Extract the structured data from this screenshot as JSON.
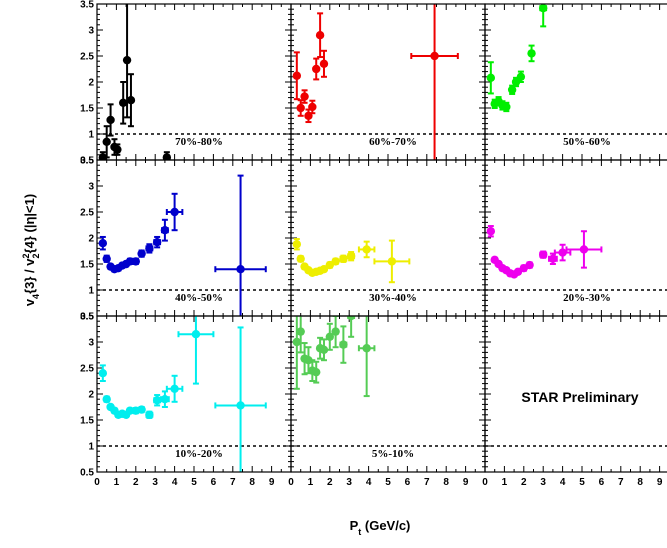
{
  "chart_data": {
    "type": "scatter",
    "xlabel": "P_t (GeV/c)",
    "ylabel": "v_4{3} / v_2^2{4} (|η|<1)",
    "xlim": [
      0,
      10
    ],
    "ylim": [
      0.5,
      3.5
    ],
    "x_ticks": [
      "0",
      "1",
      "2",
      "3",
      "4",
      "5",
      "6",
      "7",
      "8",
      "9"
    ],
    "y_ticks": [
      "0.5",
      "1",
      "1.5",
      "2",
      "2.5",
      "3",
      "3.5"
    ],
    "reference_line": 1,
    "annotation": "STAR Preliminary",
    "panels": [
      {
        "label": "70%-80%",
        "color": "#000000",
        "points": [
          {
            "x": 0.3,
            "y": 0.55,
            "ey": 0.1,
            "ex": 0
          },
          {
            "x": 0.5,
            "y": 0.85,
            "ey": 0.3,
            "ex": 0
          },
          {
            "x": 0.7,
            "y": 1.27,
            "ey": 0.3,
            "ex": 0
          },
          {
            "x": 0.9,
            "y": 0.75,
            "ey": 0.15,
            "ex": 0
          },
          {
            "x": 1.05,
            "y": 0.7,
            "ey": 0.1,
            "ex": 0
          },
          {
            "x": 1.35,
            "y": 1.6,
            "ey": 0.4,
            "ex": 0
          },
          {
            "x": 1.55,
            "y": 2.42,
            "ey": 1.1,
            "ex": 0
          },
          {
            "x": 1.75,
            "y": 1.65,
            "ey": 0.5,
            "ex": 0
          },
          {
            "x": 3.6,
            "y": 0.55,
            "ey": 0.1,
            "ex": 0
          }
        ]
      },
      {
        "label": "60%-70%",
        "color": "#ee0000",
        "points": [
          {
            "x": 0.3,
            "y": 2.12,
            "ey": 0.45,
            "ex": 0
          },
          {
            "x": 0.5,
            "y": 1.5,
            "ey": 0.15,
            "ex": 0
          },
          {
            "x": 0.7,
            "y": 1.72,
            "ey": 0.12,
            "ex": 0
          },
          {
            "x": 0.9,
            "y": 1.35,
            "ey": 0.12,
            "ex": 0
          },
          {
            "x": 1.1,
            "y": 1.52,
            "ey": 0.12,
            "ex": 0
          },
          {
            "x": 1.3,
            "y": 2.25,
            "ey": 0.2,
            "ex": 0
          },
          {
            "x": 1.5,
            "y": 2.9,
            "ey": 0.42,
            "ex": 0
          },
          {
            "x": 1.7,
            "y": 2.35,
            "ey": 0.25,
            "ex": 0
          },
          {
            "x": 7.4,
            "y": 2.5,
            "ey": 2.1,
            "ex": 1.2
          }
        ]
      },
      {
        "label": "50%-60%",
        "color": "#00ee00",
        "points": [
          {
            "x": 0.3,
            "y": 2.08,
            "ey": 0.3,
            "ex": 0
          },
          {
            "x": 0.5,
            "y": 1.58,
            "ey": 0.08,
            "ex": 0
          },
          {
            "x": 0.7,
            "y": 1.63,
            "ey": 0.08,
            "ex": 0
          },
          {
            "x": 0.9,
            "y": 1.55,
            "ey": 0.08,
            "ex": 0
          },
          {
            "x": 1.1,
            "y": 1.52,
            "ey": 0.08,
            "ex": 0
          },
          {
            "x": 1.4,
            "y": 1.85,
            "ey": 0.08,
            "ex": 0
          },
          {
            "x": 1.6,
            "y": 2.0,
            "ey": 0.08,
            "ex": 0
          },
          {
            "x": 1.85,
            "y": 2.1,
            "ey": 0.1,
            "ex": 0.1
          },
          {
            "x": 2.4,
            "y": 2.55,
            "ey": 0.15,
            "ex": 0.1
          },
          {
            "x": 3.0,
            "y": 3.42,
            "ey": 0.35,
            "ex": 0.15
          }
        ]
      },
      {
        "label": "40%-50%",
        "color": "#0000cc",
        "points": [
          {
            "x": 0.3,
            "y": 1.9,
            "ey": 0.12,
            "ex": 0
          },
          {
            "x": 0.5,
            "y": 1.6,
            "ey": 0.06,
            "ex": 0
          },
          {
            "x": 0.7,
            "y": 1.45,
            "ey": 0.04,
            "ex": 0
          },
          {
            "x": 0.9,
            "y": 1.4,
            "ey": 0.04,
            "ex": 0
          },
          {
            "x": 1.1,
            "y": 1.42,
            "ey": 0.04,
            "ex": 0
          },
          {
            "x": 1.3,
            "y": 1.47,
            "ey": 0.04,
            "ex": 0
          },
          {
            "x": 1.5,
            "y": 1.5,
            "ey": 0.04,
            "ex": 0
          },
          {
            "x": 1.7,
            "y": 1.55,
            "ey": 0.05,
            "ex": 0
          },
          {
            "x": 2.0,
            "y": 1.55,
            "ey": 0.05,
            "ex": 0.1
          },
          {
            "x": 2.3,
            "y": 1.7,
            "ey": 0.06,
            "ex": 0.1
          },
          {
            "x": 2.7,
            "y": 1.8,
            "ey": 0.08,
            "ex": 0.15
          },
          {
            "x": 3.1,
            "y": 1.92,
            "ey": 0.1,
            "ex": 0.15
          },
          {
            "x": 3.5,
            "y": 2.15,
            "ey": 0.2,
            "ex": 0.15
          },
          {
            "x": 4.0,
            "y": 2.5,
            "ey": 0.35,
            "ex": 0.4
          },
          {
            "x": 7.4,
            "y": 1.4,
            "ey": 1.8,
            "ex": 1.3
          }
        ]
      },
      {
        "label": "30%-40%",
        "color": "#eeee00",
        "points": [
          {
            "x": 0.3,
            "y": 1.88,
            "ey": 0.1,
            "ex": 0
          },
          {
            "x": 0.5,
            "y": 1.6,
            "ey": 0.05,
            "ex": 0
          },
          {
            "x": 0.7,
            "y": 1.45,
            "ey": 0.04,
            "ex": 0
          },
          {
            "x": 0.9,
            "y": 1.38,
            "ey": 0.04,
            "ex": 0
          },
          {
            "x": 1.1,
            "y": 1.33,
            "ey": 0.04,
            "ex": 0
          },
          {
            "x": 1.3,
            "y": 1.35,
            "ey": 0.04,
            "ex": 0
          },
          {
            "x": 1.5,
            "y": 1.37,
            "ey": 0.04,
            "ex": 0
          },
          {
            "x": 1.7,
            "y": 1.4,
            "ey": 0.04,
            "ex": 0
          },
          {
            "x": 2.0,
            "y": 1.48,
            "ey": 0.05,
            "ex": 0.1
          },
          {
            "x": 2.3,
            "y": 1.55,
            "ey": 0.05,
            "ex": 0.1
          },
          {
            "x": 2.7,
            "y": 1.6,
            "ey": 0.06,
            "ex": 0.15
          },
          {
            "x": 3.1,
            "y": 1.65,
            "ey": 0.08,
            "ex": 0.15
          },
          {
            "x": 3.9,
            "y": 1.78,
            "ey": 0.15,
            "ex": 0.4
          },
          {
            "x": 5.2,
            "y": 1.55,
            "ey": 0.4,
            "ex": 0.9
          }
        ]
      },
      {
        "label": "20%-30%",
        "color": "#ee00ee",
        "points": [
          {
            "x": 0.3,
            "y": 2.13,
            "ey": 0.1,
            "ex": 0
          },
          {
            "x": 0.5,
            "y": 1.58,
            "ey": 0.04,
            "ex": 0
          },
          {
            "x": 0.7,
            "y": 1.5,
            "ey": 0.04,
            "ex": 0
          },
          {
            "x": 0.9,
            "y": 1.42,
            "ey": 0.04,
            "ex": 0
          },
          {
            "x": 1.1,
            "y": 1.38,
            "ey": 0.04,
            "ex": 0
          },
          {
            "x": 1.3,
            "y": 1.32,
            "ey": 0.04,
            "ex": 0
          },
          {
            "x": 1.5,
            "y": 1.3,
            "ey": 0.04,
            "ex": 0
          },
          {
            "x": 1.7,
            "y": 1.35,
            "ey": 0.04,
            "ex": 0
          },
          {
            "x": 2.0,
            "y": 1.42,
            "ey": 0.05,
            "ex": 0.1
          },
          {
            "x": 2.3,
            "y": 1.48,
            "ey": 0.05,
            "ex": 0.1
          },
          {
            "x": 3.0,
            "y": 1.68,
            "ey": 0.06,
            "ex": 0.15
          },
          {
            "x": 3.5,
            "y": 1.6,
            "ey": 0.1,
            "ex": 0.2
          },
          {
            "x": 4.0,
            "y": 1.72,
            "ey": 0.15,
            "ex": 0.4
          },
          {
            "x": 5.1,
            "y": 1.78,
            "ey": 0.35,
            "ex": 0.9
          }
        ]
      },
      {
        "label": "10%-20%",
        "color": "#00eeee",
        "points": [
          {
            "x": 0.3,
            "y": 2.4,
            "ey": 0.15,
            "ex": 0
          },
          {
            "x": 0.5,
            "y": 1.9,
            "ey": 0.05,
            "ex": 0
          },
          {
            "x": 0.7,
            "y": 1.75,
            "ey": 0.04,
            "ex": 0
          },
          {
            "x": 0.9,
            "y": 1.68,
            "ey": 0.04,
            "ex": 0
          },
          {
            "x": 1.1,
            "y": 1.6,
            "ey": 0.04,
            "ex": 0
          },
          {
            "x": 1.3,
            "y": 1.62,
            "ey": 0.04,
            "ex": 0
          },
          {
            "x": 1.5,
            "y": 1.6,
            "ey": 0.04,
            "ex": 0
          },
          {
            "x": 1.7,
            "y": 1.68,
            "ey": 0.04,
            "ex": 0
          },
          {
            "x": 2.0,
            "y": 1.68,
            "ey": 0.05,
            "ex": 0.1
          },
          {
            "x": 2.3,
            "y": 1.7,
            "ey": 0.05,
            "ex": 0.1
          },
          {
            "x": 2.7,
            "y": 1.6,
            "ey": 0.06,
            "ex": 0.15
          },
          {
            "x": 3.1,
            "y": 1.88,
            "ey": 0.1,
            "ex": 0.15
          },
          {
            "x": 3.5,
            "y": 1.9,
            "ey": 0.15,
            "ex": 0.2
          },
          {
            "x": 4.0,
            "y": 2.1,
            "ey": 0.25,
            "ex": 0.4
          },
          {
            "x": 5.1,
            "y": 3.15,
            "ey": 0.95,
            "ex": 0.9
          },
          {
            "x": 7.4,
            "y": 1.78,
            "ey": 1.5,
            "ex": 1.3
          }
        ]
      },
      {
        "label": "5%-10%",
        "color": "#55cc55",
        "points": [
          {
            "x": 0.3,
            "y": 3.0,
            "ey": 0.9,
            "ex": 0
          },
          {
            "x": 0.5,
            "y": 3.2,
            "ey": 0.4,
            "ex": 0
          },
          {
            "x": 0.7,
            "y": 2.68,
            "ey": 0.3,
            "ex": 0
          },
          {
            "x": 0.9,
            "y": 2.65,
            "ey": 0.25,
            "ex": 0
          },
          {
            "x": 1.1,
            "y": 2.45,
            "ey": 0.2,
            "ex": 0
          },
          {
            "x": 1.3,
            "y": 2.42,
            "ey": 0.2,
            "ex": 0
          },
          {
            "x": 1.5,
            "y": 2.88,
            "ey": 0.2,
            "ex": 0
          },
          {
            "x": 1.7,
            "y": 2.85,
            "ey": 0.2,
            "ex": 0
          },
          {
            "x": 2.0,
            "y": 3.1,
            "ey": 0.25,
            "ex": 0.1
          },
          {
            "x": 2.3,
            "y": 3.2,
            "ey": 0.3,
            "ex": 0.1
          },
          {
            "x": 2.7,
            "y": 2.95,
            "ey": 0.35,
            "ex": 0.15
          },
          {
            "x": 3.1,
            "y": 3.5,
            "ey": 0.4,
            "ex": 0.15
          },
          {
            "x": 3.9,
            "y": 2.88,
            "ey": 0.92,
            "ex": 0.4
          }
        ]
      },
      {
        "label": "",
        "color": "#000000",
        "points": []
      }
    ]
  }
}
